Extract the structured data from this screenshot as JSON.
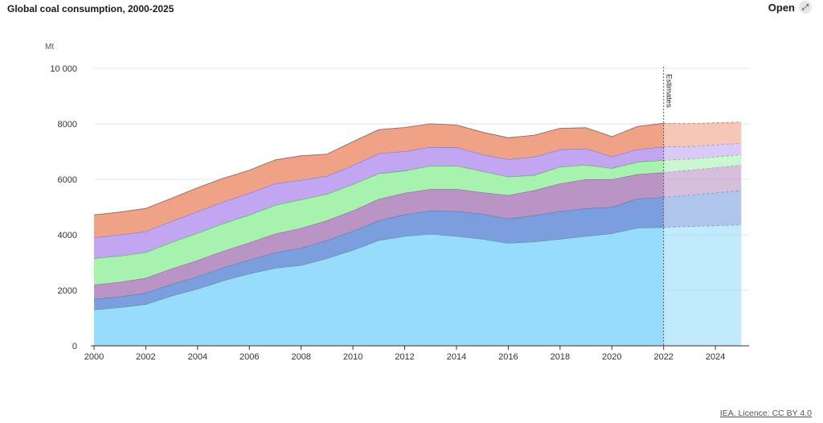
{
  "header": {
    "title": "Global coal consumption, 2000-2025",
    "open_label": "Open",
    "open_icon": "expand-arrow-icon"
  },
  "footer": {
    "credit": "IEA. Licence: CC BY 4.0"
  },
  "chart_data": {
    "type": "area",
    "stacked": true,
    "title": "Global coal consumption, 2000-2025",
    "ylabel": "Mt",
    "xlabel": "",
    "ylim": [
      0,
      10000
    ],
    "yticks": [
      0,
      2000,
      4000,
      6000,
      8000,
      10000
    ],
    "ytick_labels": [
      "0",
      "2000",
      "4000",
      "6000",
      "8000",
      "10 000"
    ],
    "xlim": [
      2000,
      2025.3
    ],
    "xticks": [
      2000,
      2002,
      2004,
      2006,
      2008,
      2010,
      2012,
      2014,
      2016,
      2018,
      2020,
      2022,
      2024
    ],
    "grid": true,
    "estimates_from": 2022,
    "estimates_label": "Estimates",
    "x": [
      2000,
      2001,
      2002,
      2003,
      2004,
      2005,
      2006,
      2007,
      2008,
      2009,
      2010,
      2011,
      2012,
      2013,
      2014,
      2015,
      2016,
      2017,
      2018,
      2019,
      2020,
      2021,
      2022,
      2023,
      2024,
      2025
    ],
    "series": [
      {
        "color": "#97dcfa",
        "values": [
          1300,
          1380,
          1500,
          1800,
          2050,
          2350,
          2600,
          2800,
          2900,
          3150,
          3450,
          3800,
          3950,
          4030,
          3950,
          3850,
          3700,
          3750,
          3850,
          3950,
          4050,
          4250,
          4270,
          4300,
          4330,
          4360
        ]
      },
      {
        "color": "#7b9edf",
        "values": [
          380,
          390,
          400,
          420,
          440,
          470,
          500,
          560,
          620,
          650,
          680,
          710,
          780,
          840,
          900,
          900,
          880,
          950,
          1000,
          1000,
          950,
          1050,
          1080,
          1130,
          1180,
          1230
        ]
      },
      {
        "color": "#b994c4",
        "values": [
          520,
          530,
          540,
          560,
          590,
          600,
          620,
          680,
          720,
          720,
          740,
          780,
          780,
          780,
          800,
          780,
          850,
          900,
          1000,
          1050,
          1000,
          880,
          900,
          900,
          910,
          920
        ]
      },
      {
        "color": "#a8f2b0",
        "values": [
          950,
          940,
          930,
          950,
          980,
          990,
          1000,
          1030,
          1030,
          950,
          950,
          920,
          800,
          830,
          840,
          760,
          660,
          550,
          600,
          520,
          400,
          450,
          440,
          400,
          390,
          380
        ]
      },
      {
        "color": "#c2a6f2",
        "values": [
          750,
          760,
          750,
          760,
          780,
          780,
          780,
          780,
          700,
          650,
          680,
          720,
          700,
          680,
          660,
          610,
          630,
          660,
          620,
          590,
          420,
          450,
          480,
          450,
          430,
          410
        ]
      },
      {
        "color": "#f0a286",
        "values": [
          820,
          820,
          830,
          830,
          860,
          850,
          830,
          850,
          880,
          790,
          860,
          860,
          860,
          840,
          810,
          800,
          780,
          780,
          770,
          750,
          720,
          830,
          850,
          830,
          800,
          770
        ]
      }
    ]
  }
}
